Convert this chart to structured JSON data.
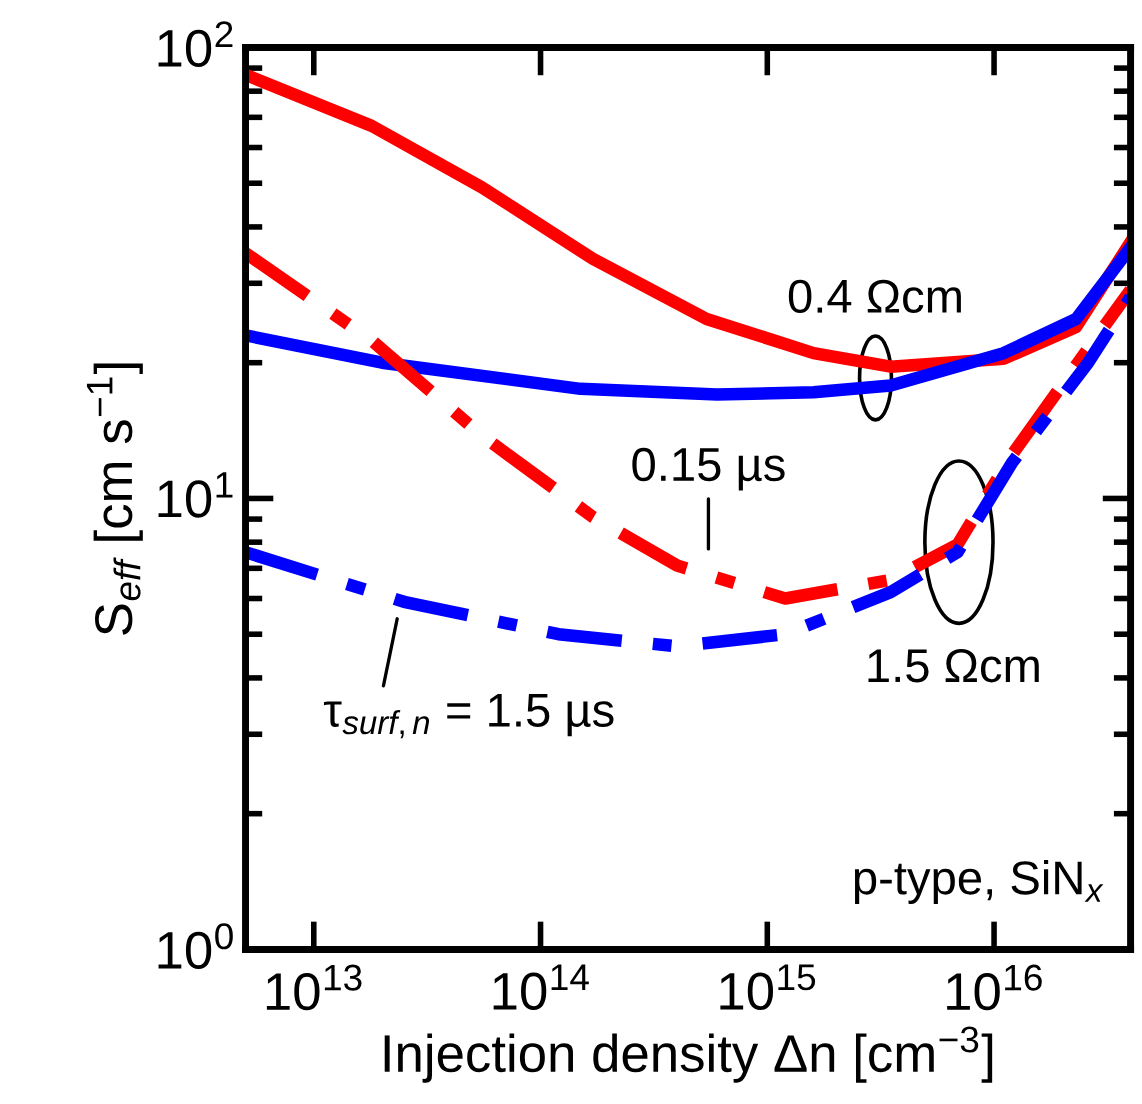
{
  "chart_data": {
    "type": "line",
    "log": "xy",
    "xlabel": "Injection density Δn [cm$^{−3}$]",
    "ylabel": "S$_{eff}$ [cm s$^{−1}$]",
    "xlim": [
      5000000000000.0,
      4e+16
    ],
    "ylim": [
      1,
      100
    ],
    "xticks": [
      {
        "value": 10000000000000.0,
        "label": "10$^{13}$"
      },
      {
        "value": 100000000000000.0,
        "label": "10$^{14}$"
      },
      {
        "value": 1000000000000000.0,
        "label": "10$^{15}$"
      },
      {
        "value": 1e+16,
        "label": "10$^{16}$"
      }
    ],
    "yticks": [
      {
        "value": 1,
        "label": "10$^{0}$"
      },
      {
        "value": 10,
        "label": "10$^{1}$"
      },
      {
        "value": 100,
        "label": "10$^{2}$"
      }
    ],
    "grid": false,
    "legend": false,
    "series": [
      {
        "color": "#ff0000",
        "line_style": "solid",
        "x": [
          5000000000000.0,
          18000000000000.0,
          55000000000000.0,
          170000000000000.0,
          540000000000000.0,
          1600000000000000.0,
          3500000000000000.0,
          1.1e+16,
          2.3e+16,
          4e+16
        ],
        "values": [
          87,
          67,
          49,
          34,
          25,
          21,
          19.6,
          20.4,
          24,
          37
        ]
      },
      {
        "color": "#0000ff",
        "line_style": "solid",
        "x": [
          5000000000000.0,
          20000000000000.0,
          150000000000000.0,
          600000000000000.0,
          1600000000000000.0,
          3500000000000000.0,
          1.1e+16,
          2.3e+16,
          4e+16
        ],
        "values": [
          23,
          20,
          17.5,
          17,
          17.2,
          17.8,
          21,
          25,
          36
        ]
      },
      {
        "color": "#ff0000",
        "line_style": "dashdot",
        "x": [
          5000000000000.0,
          18000000000000.0,
          55000000000000.0,
          170000000000000.0,
          400000000000000.0,
          1200000000000000.0,
          3500000000000000.0,
          6900000000000000.0,
          1.2e+16,
          2.6e+16,
          4e+16
        ],
        "values": [
          35,
          22.4,
          13.8,
          9.1,
          7.1,
          6.0,
          6.6,
          7.9,
          12.5,
          21.5,
          29
        ]
      },
      {
        "color": "#0000ff",
        "line_style": "dashdot",
        "x": [
          5000000000000.0,
          25000000000000.0,
          120000000000000.0,
          400000000000000.0,
          1200000000000000.0,
          3500000000000000.0,
          6900000000000000.0,
          1.2e+16,
          2.6e+16,
          4e+16
        ],
        "values": [
          7.6,
          5.9,
          5.0,
          4.7,
          5.0,
          6.2,
          7.6,
          12,
          20,
          28
        ]
      }
    ],
    "annotations": [
      {
        "text": "0.4 Ωcm",
        "x": 3000000000000000.0,
        "y": 18.5
      },
      {
        "text": "0.15 µs",
        "x": 550000000000000.0,
        "y": 7.2
      },
      {
        "text": "1.5 Ωcm",
        "x": 7000000000000000.0,
        "y": 8
      },
      {
        "text": "τ$_{surf,n}$ = 1.5 µs",
        "x": 24000000000000.0,
        "y": 5.8
      },
      "p-type, SiN$_{x}$"
    ]
  }
}
